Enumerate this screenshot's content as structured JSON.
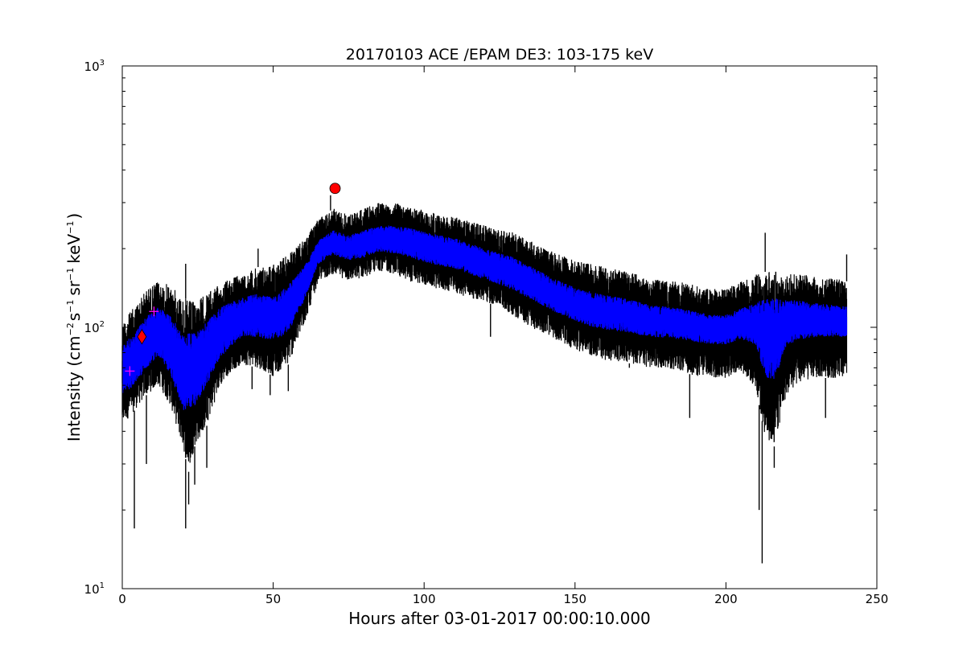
{
  "chart_data": {
    "type": "line",
    "title": "20170103 ACE /EPAM DE3: 103-175 keV",
    "xlabel": "Hours after 03-01-2017 00:00:10.000",
    "ylabel": {
      "prefix": "Intensity (cm",
      "sup1": "−2",
      "mid1": "s",
      "sup2": "−1",
      "mid2": "sr",
      "sup3": "−1",
      "mid3": "keV",
      "sup4": "−1",
      "suffix": ")"
    },
    "xlim": [
      0,
      250
    ],
    "ylim": [
      10,
      1000
    ],
    "yscale": "log",
    "grid": false,
    "x_ticks": [
      {
        "value": 0,
        "label": "0"
      },
      {
        "value": 50,
        "label": "50"
      },
      {
        "value": 100,
        "label": "100"
      },
      {
        "value": 150,
        "label": "150"
      },
      {
        "value": 200,
        "label": "200"
      },
      {
        "value": 250,
        "label": "250"
      }
    ],
    "y_major_ticks": [
      {
        "value": 10,
        "base": "10",
        "exp": "1"
      },
      {
        "value": 100,
        "base": "10",
        "exp": "2"
      },
      {
        "value": 1000,
        "base": "10",
        "exp": "3"
      }
    ],
    "x_range_data": [
      0,
      240
    ],
    "series": [
      {
        "role": "envelope",
        "color": "#000000",
        "upper": [
          [
            0,
            105
          ],
          [
            4,
            120
          ],
          [
            8,
            140
          ],
          [
            12,
            150
          ],
          [
            16,
            145
          ],
          [
            20,
            130
          ],
          [
            24,
            125
          ],
          [
            28,
            135
          ],
          [
            32,
            145
          ],
          [
            36,
            155
          ],
          [
            40,
            160
          ],
          [
            45,
            170
          ],
          [
            50,
            175
          ],
          [
            55,
            190
          ],
          [
            60,
            215
          ],
          [
            65,
            260
          ],
          [
            70,
            285
          ],
          [
            75,
            270
          ],
          [
            80,
            285
          ],
          [
            85,
            300
          ],
          [
            90,
            300
          ],
          [
            95,
            290
          ],
          [
            100,
            280
          ],
          [
            105,
            270
          ],
          [
            110,
            265
          ],
          [
            115,
            255
          ],
          [
            120,
            245
          ],
          [
            125,
            235
          ],
          [
            130,
            230
          ],
          [
            135,
            215
          ],
          [
            140,
            200
          ],
          [
            145,
            190
          ],
          [
            150,
            180
          ],
          [
            155,
            175
          ],
          [
            160,
            170
          ],
          [
            165,
            165
          ],
          [
            170,
            160
          ],
          [
            175,
            155
          ],
          [
            180,
            150
          ],
          [
            185,
            150
          ],
          [
            190,
            145
          ],
          [
            195,
            140
          ],
          [
            200,
            140
          ],
          [
            205,
            150
          ],
          [
            210,
            160
          ],
          [
            215,
            165
          ],
          [
            220,
            160
          ],
          [
            225,
            160
          ],
          [
            230,
            155
          ],
          [
            235,
            155
          ],
          [
            240,
            150
          ]
        ],
        "lower": [
          [
            0,
            42
          ],
          [
            4,
            48
          ],
          [
            8,
            55
          ],
          [
            12,
            60
          ],
          [
            16,
            50
          ],
          [
            20,
            35
          ],
          [
            22,
            28
          ],
          [
            24,
            35
          ],
          [
            28,
            42
          ],
          [
            32,
            58
          ],
          [
            36,
            68
          ],
          [
            40,
            72
          ],
          [
            45,
            70
          ],
          [
            50,
            65
          ],
          [
            55,
            72
          ],
          [
            60,
            100
          ],
          [
            65,
            150
          ],
          [
            70,
            160
          ],
          [
            75,
            150
          ],
          [
            80,
            155
          ],
          [
            85,
            165
          ],
          [
            90,
            160
          ],
          [
            95,
            150
          ],
          [
            100,
            145
          ],
          [
            105,
            140
          ],
          [
            110,
            135
          ],
          [
            115,
            130
          ],
          [
            120,
            125
          ],
          [
            125,
            120
          ],
          [
            130,
            110
          ],
          [
            135,
            100
          ],
          [
            140,
            95
          ],
          [
            145,
            88
          ],
          [
            150,
            82
          ],
          [
            155,
            78
          ],
          [
            160,
            75
          ],
          [
            165,
            74
          ],
          [
            170,
            72
          ],
          [
            175,
            70
          ],
          [
            180,
            70
          ],
          [
            185,
            68
          ],
          [
            190,
            65
          ],
          [
            195,
            64
          ],
          [
            200,
            64
          ],
          [
            205,
            68
          ],
          [
            210,
            58
          ],
          [
            213,
            38
          ],
          [
            216,
            35
          ],
          [
            220,
            55
          ],
          [
            225,
            62
          ],
          [
            230,
            64
          ],
          [
            235,
            64
          ],
          [
            240,
            64
          ]
        ]
      },
      {
        "role": "mean",
        "color": "#0000ff",
        "upper": [
          [
            0,
            85
          ],
          [
            4,
            95
          ],
          [
            8,
            110
          ],
          [
            12,
            120
          ],
          [
            16,
            110
          ],
          [
            20,
            95
          ],
          [
            24,
            95
          ],
          [
            28,
            105
          ],
          [
            32,
            118
          ],
          [
            36,
            125
          ],
          [
            40,
            130
          ],
          [
            45,
            135
          ],
          [
            50,
            130
          ],
          [
            55,
            145
          ],
          [
            60,
            170
          ],
          [
            65,
            215
          ],
          [
            70,
            235
          ],
          [
            75,
            225
          ],
          [
            80,
            235
          ],
          [
            85,
            245
          ],
          [
            90,
            245
          ],
          [
            95,
            240
          ],
          [
            100,
            232
          ],
          [
            105,
            225
          ],
          [
            110,
            220
          ],
          [
            115,
            210
          ],
          [
            120,
            200
          ],
          [
            125,
            192
          ],
          [
            130,
            185
          ],
          [
            135,
            172
          ],
          [
            140,
            160
          ],
          [
            145,
            150
          ],
          [
            150,
            142
          ],
          [
            155,
            137
          ],
          [
            160,
            133
          ],
          [
            165,
            130
          ],
          [
            170,
            126
          ],
          [
            175,
            122
          ],
          [
            180,
            120
          ],
          [
            185,
            118
          ],
          [
            190,
            115
          ],
          [
            195,
            112
          ],
          [
            200,
            112
          ],
          [
            205,
            118
          ],
          [
            210,
            125
          ],
          [
            215,
            130
          ],
          [
            220,
            128
          ],
          [
            225,
            126
          ],
          [
            230,
            124
          ],
          [
            235,
            122
          ],
          [
            240,
            120
          ]
        ],
        "lower": [
          [
            0,
            55
          ],
          [
            4,
            60
          ],
          [
            8,
            70
          ],
          [
            12,
            78
          ],
          [
            16,
            66
          ],
          [
            20,
            48
          ],
          [
            24,
            50
          ],
          [
            28,
            60
          ],
          [
            32,
            75
          ],
          [
            36,
            85
          ],
          [
            40,
            92
          ],
          [
            45,
            92
          ],
          [
            50,
            88
          ],
          [
            55,
            95
          ],
          [
            60,
            125
          ],
          [
            65,
            175
          ],
          [
            70,
            190
          ],
          [
            75,
            180
          ],
          [
            80,
            185
          ],
          [
            85,
            195
          ],
          [
            90,
            192
          ],
          [
            95,
            185
          ],
          [
            100,
            178
          ],
          [
            105,
            172
          ],
          [
            110,
            168
          ],
          [
            115,
            160
          ],
          [
            120,
            152
          ],
          [
            125,
            146
          ],
          [
            130,
            138
          ],
          [
            135,
            128
          ],
          [
            140,
            120
          ],
          [
            145,
            112
          ],
          [
            150,
            106
          ],
          [
            155,
            101
          ],
          [
            160,
            98
          ],
          [
            165,
            96
          ],
          [
            170,
            94
          ],
          [
            175,
            92
          ],
          [
            180,
            91
          ],
          [
            185,
            90
          ],
          [
            190,
            88
          ],
          [
            195,
            86
          ],
          [
            200,
            86
          ],
          [
            205,
            90
          ],
          [
            210,
            85
          ],
          [
            213,
            65
          ],
          [
            216,
            62
          ],
          [
            220,
            85
          ],
          [
            225,
            90
          ],
          [
            230,
            92
          ],
          [
            235,
            92
          ],
          [
            240,
            92
          ]
        ]
      }
    ],
    "spikes": [
      {
        "x": 4,
        "y": 17
      },
      {
        "x": 8,
        "y": 30
      },
      {
        "x": 21,
        "y": 17
      },
      {
        "x": 22,
        "y": 21
      },
      {
        "x": 24,
        "y": 25
      },
      {
        "x": 28,
        "y": 29
      },
      {
        "x": 43,
        "y": 58
      },
      {
        "x": 49,
        "y": 55
      },
      {
        "x": 55,
        "y": 57
      },
      {
        "x": 122,
        "y": 92
      },
      {
        "x": 168,
        "y": 70
      },
      {
        "x": 188,
        "y": 45
      },
      {
        "x": 211,
        "y": 20
      },
      {
        "x": 212,
        "y": 12.5
      },
      {
        "x": 216,
        "y": 29
      },
      {
        "x": 233,
        "y": 45
      },
      {
        "x": 21,
        "y": 175
      },
      {
        "x": 45,
        "y": 200
      },
      {
        "x": 69,
        "y": 320
      },
      {
        "x": 213,
        "y": 230
      },
      {
        "x": 240,
        "y": 190
      }
    ],
    "markers": [
      {
        "x": 2.5,
        "y": 68,
        "shape": "plus",
        "color": "#ff00ff"
      },
      {
        "x": 10.5,
        "y": 115,
        "shape": "plus",
        "color": "#ff00ff"
      },
      {
        "x": 6.5,
        "y": 92,
        "shape": "diamond",
        "color": "#ff0000"
      },
      {
        "x": 70.5,
        "y": 340,
        "shape": "circle",
        "color": "#ff0000"
      }
    ]
  }
}
